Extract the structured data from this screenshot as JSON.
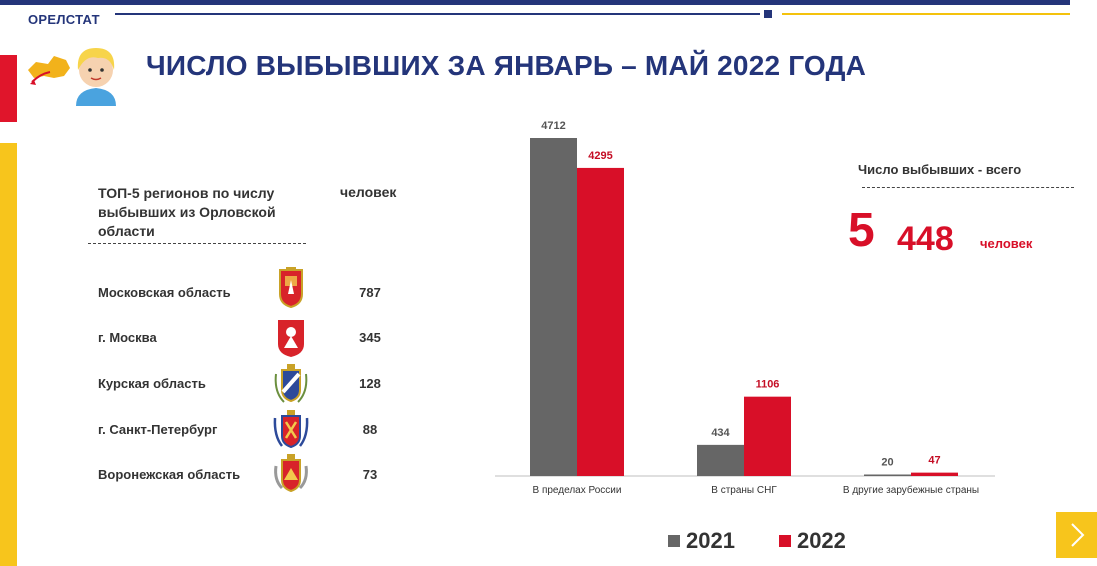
{
  "brand": "ОРЕЛСТАТ",
  "title": "ЧИСЛО ВЫБЫВШИХ ЗА ЯНВАРЬ – МАЙ 2022 ГОДА",
  "regions_table": {
    "header": "ТОП-5 регионов по числу выбывших из Орловской области",
    "unit_header": "человек",
    "rows": [
      {
        "name": "Московская область",
        "value": "787"
      },
      {
        "name": "г. Москва",
        "value": "345"
      },
      {
        "name": "Курская область",
        "value": "128"
      },
      {
        "name": "г. Санкт-Петербург",
        "value": "88"
      },
      {
        "name": "Воронежская область",
        "value": "73"
      }
    ]
  },
  "total": {
    "label": "Число выбывших - всего",
    "value_big": "5",
    "value_small": "448",
    "unit": "человек"
  },
  "chart_data": {
    "type": "bar",
    "categories": [
      "В пределах России",
      "В страны СНГ",
      "В другие зарубежные страны"
    ],
    "series": [
      {
        "name": "2021",
        "values": [
          4712,
          434,
          20
        ],
        "color": "#666666"
      },
      {
        "name": "2022",
        "values": [
          4295,
          1106,
          47
        ],
        "color": "#d80f28"
      }
    ],
    "ylim": [
      0,
      4712
    ],
    "grid": false,
    "legend_position": "bottom",
    "title": "",
    "xlabel": "",
    "ylabel": ""
  }
}
